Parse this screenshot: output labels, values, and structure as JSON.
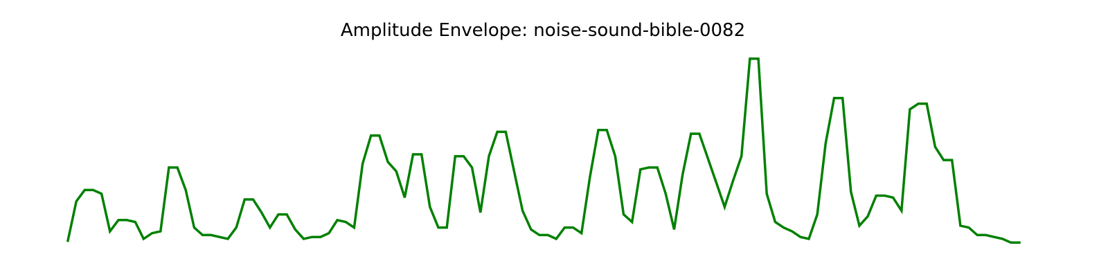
{
  "chart_data": {
    "type": "line",
    "title": "Amplitude Envelope: noise-sound-bible-0082",
    "xlabel": "",
    "ylabel": "",
    "axes_visible": false,
    "grid": false,
    "legend": "none",
    "ylim": [
      0,
      1
    ],
    "x": [
      0,
      1,
      2,
      3,
      4,
      5,
      6,
      7,
      8,
      9,
      10,
      11,
      12,
      13,
      14,
      15,
      16,
      17,
      18,
      19,
      20,
      21,
      22,
      23,
      24,
      25,
      26,
      27,
      28,
      29,
      30,
      31,
      32,
      33,
      34,
      35,
      36,
      37,
      38,
      39,
      40,
      41,
      42,
      43,
      44,
      45,
      46,
      47,
      48,
      49,
      50,
      51,
      52,
      53,
      54,
      55,
      56,
      57,
      58,
      59,
      60,
      61,
      62,
      63,
      64,
      65,
      66,
      67,
      68,
      69,
      70,
      71,
      72,
      73,
      74,
      75,
      76,
      77,
      78,
      79,
      80,
      81,
      82,
      83,
      84,
      85,
      86,
      87,
      88,
      89,
      90,
      91,
      92,
      93,
      94,
      95,
      96,
      97,
      98,
      99,
      100,
      101,
      102,
      103,
      104,
      105,
      106,
      107,
      108,
      109,
      110,
      111,
      112,
      113
    ],
    "series": [
      {
        "color": "#008000",
        "values": [
          0.02,
          0.23,
          0.29,
          0.29,
          0.27,
          0.07,
          0.13,
          0.13,
          0.12,
          0.03,
          0.06,
          0.07,
          0.41,
          0.41,
          0.29,
          0.09,
          0.05,
          0.05,
          0.04,
          0.03,
          0.09,
          0.24,
          0.24,
          0.17,
          0.09,
          0.16,
          0.16,
          0.08,
          0.03,
          0.04,
          0.04,
          0.06,
          0.13,
          0.12,
          0.09,
          0.43,
          0.58,
          0.58,
          0.44,
          0.39,
          0.25,
          0.48,
          0.48,
          0.2,
          0.09,
          0.09,
          0.47,
          0.47,
          0.41,
          0.17,
          0.47,
          0.6,
          0.6,
          0.39,
          0.18,
          0.08,
          0.05,
          0.05,
          0.03,
          0.09,
          0.09,
          0.06,
          0.36,
          0.61,
          0.61,
          0.47,
          0.16,
          0.12,
          0.4,
          0.41,
          0.41,
          0.27,
          0.08,
          0.37,
          0.59,
          0.59,
          0.46,
          0.33,
          0.2,
          0.34,
          0.47,
          0.99,
          0.99,
          0.27,
          0.12,
          0.09,
          0.07,
          0.04,
          0.03,
          0.16,
          0.54,
          0.78,
          0.78,
          0.28,
          0.1,
          0.15,
          0.26,
          0.26,
          0.25,
          0.18,
          0.72,
          0.75,
          0.75,
          0.52,
          0.45,
          0.45,
          0.1,
          0.09,
          0.05,
          0.05,
          0.04,
          0.03,
          0.01,
          0.01
        ]
      }
    ]
  }
}
